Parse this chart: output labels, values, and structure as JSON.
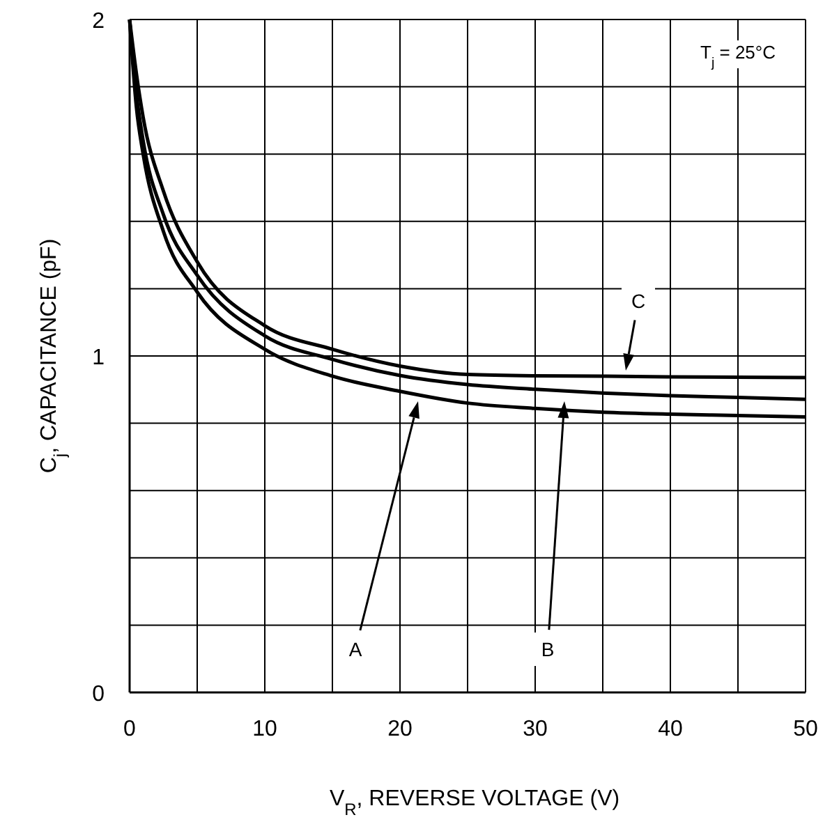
{
  "chart_data": {
    "type": "line",
    "xlabel": "V$_{R}$, REVERSE VOLTAGE (V)",
    "ylabel": "C$_{j}$, CAPACITANCE (pF)",
    "x": [
      0,
      0.5,
      1,
      2.5,
      5,
      10,
      15,
      20,
      25,
      30,
      35,
      40,
      45,
      50
    ],
    "series": [
      {
        "color": "#000000",
        "values": [
          2.0,
          1.74,
          1.6,
          1.37,
          1.19,
          1.02,
          0.94,
          0.895,
          0.86,
          0.844,
          0.833,
          0.827,
          0.823,
          0.819
        ]
      },
      {
        "color": "#000000",
        "values": [
          2.0,
          1.78,
          1.64,
          1.42,
          1.24,
          1.06,
          0.99,
          0.942,
          0.915,
          0.901,
          0.89,
          0.882,
          0.877,
          0.871
        ]
      },
      {
        "color": "#000000",
        "values": [
          2.0,
          1.84,
          1.71,
          1.49,
          1.28,
          1.09,
          1.02,
          0.97,
          0.945,
          0.941,
          0.94,
          0.938,
          0.937,
          0.936
        ]
      }
    ],
    "xlim": [
      0,
      50
    ],
    "ylim": [
      0,
      2
    ],
    "xticks": [
      0,
      {
        "value": 5,
        "label": null
      },
      10,
      {
        "value": 15,
        "label": null
      },
      20,
      {
        "value": 25,
        "label": null
      },
      30,
      {
        "value": 35,
        "label": null
      },
      40,
      {
        "value": 45,
        "label": null
      },
      50
    ],
    "yticks": [
      0,
      {
        "value": 0.2,
        "label": null
      },
      {
        "value": 0.4,
        "label": null
      },
      {
        "value": 0.6,
        "label": null
      },
      {
        "value": 0.8,
        "label": null
      },
      1,
      {
        "value": 1.2,
        "label": null
      },
      {
        "value": 1.4,
        "label": null
      },
      {
        "value": 1.6,
        "label": null
      },
      {
        "value": 1.8,
        "label": null
      },
      2
    ],
    "grid": true,
    "marker": "none",
    "line_style": "solid",
    "annotations": [
      "A",
      "B",
      "C",
      "T$_{j}$ = 25°C"
    ]
  }
}
